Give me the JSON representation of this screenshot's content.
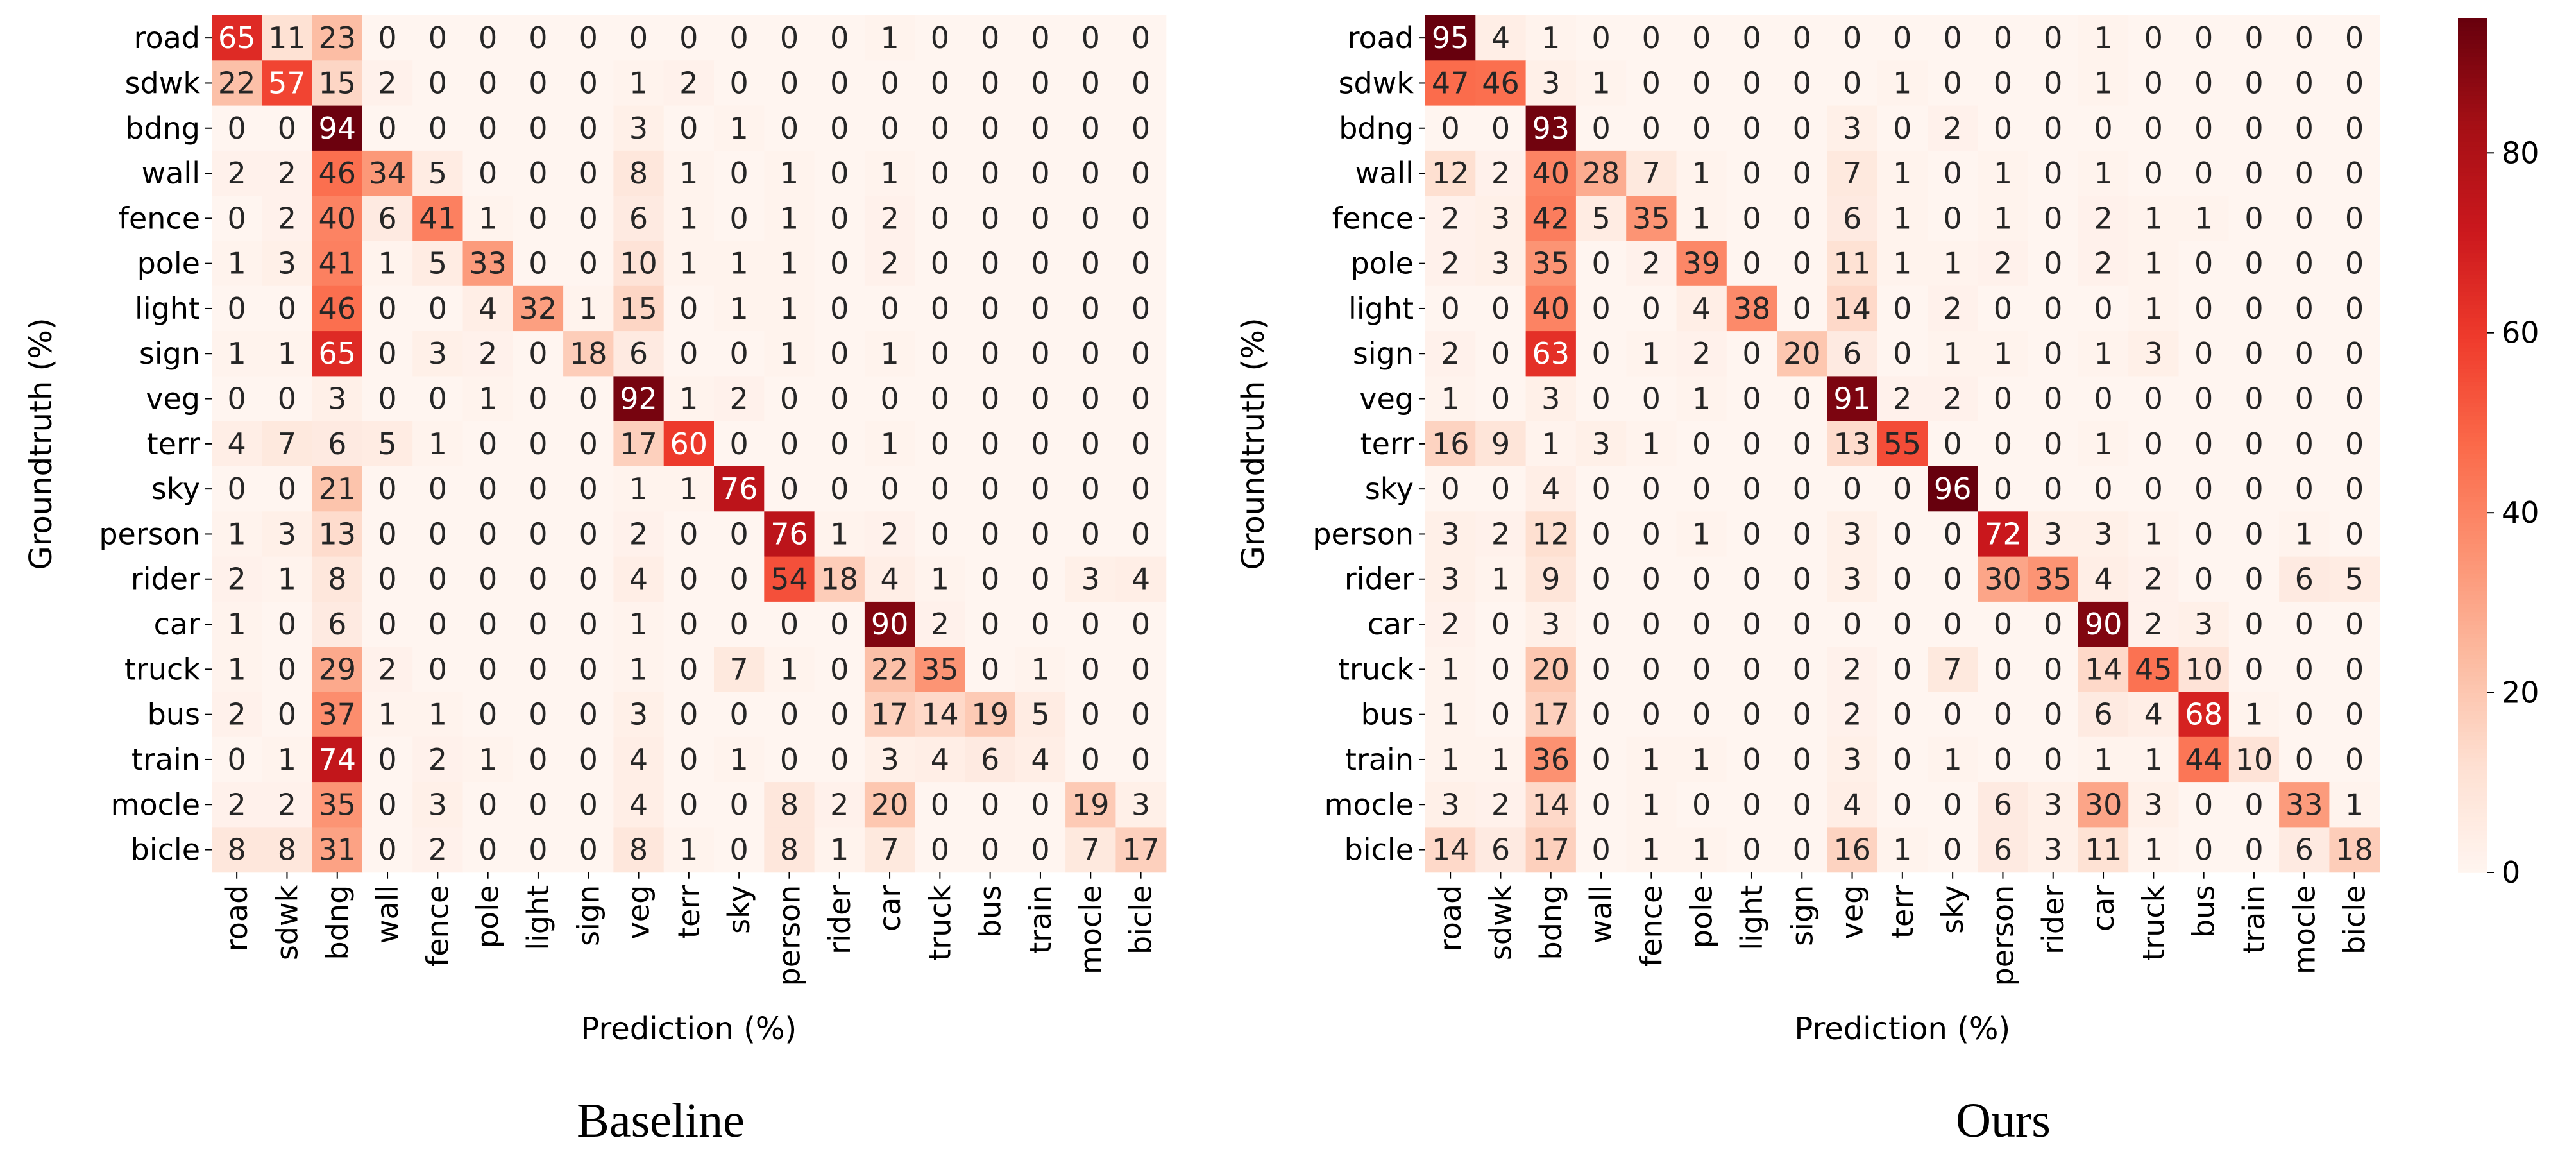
{
  "chart_data": [
    {
      "type": "heatmap",
      "title": "Baseline",
      "xlabel": "Prediction  (%)",
      "ylabel": "Groundtruth  (%)",
      "row_labels": [
        "road",
        "sdwk",
        "bdng",
        "wall",
        "fence",
        "pole",
        "light",
        "sign",
        "veg",
        "terr",
        "sky",
        "person",
        "rider",
        "car",
        "truck",
        "bus",
        "train",
        "mocle",
        "bicle"
      ],
      "col_labels": [
        "road",
        "sdwk",
        "bdng",
        "wall",
        "fence",
        "pole",
        "light",
        "sign",
        "veg",
        "terr",
        "sky",
        "person",
        "rider",
        "car",
        "truck",
        "bus",
        "train",
        "mocle",
        "bicle"
      ],
      "values": [
        [
          65,
          11,
          23,
          0,
          0,
          0,
          0,
          0,
          0,
          0,
          0,
          0,
          0,
          1,
          0,
          0,
          0,
          0,
          0
        ],
        [
          22,
          57,
          15,
          2,
          0,
          0,
          0,
          0,
          1,
          2,
          0,
          0,
          0,
          0,
          0,
          0,
          0,
          0,
          0
        ],
        [
          0,
          0,
          94,
          0,
          0,
          0,
          0,
          0,
          3,
          0,
          1,
          0,
          0,
          0,
          0,
          0,
          0,
          0,
          0
        ],
        [
          2,
          2,
          46,
          34,
          5,
          0,
          0,
          0,
          8,
          1,
          0,
          1,
          0,
          1,
          0,
          0,
          0,
          0,
          0
        ],
        [
          0,
          2,
          40,
          6,
          41,
          1,
          0,
          0,
          6,
          1,
          0,
          1,
          0,
          2,
          0,
          0,
          0,
          0,
          0
        ],
        [
          1,
          3,
          41,
          1,
          5,
          33,
          0,
          0,
          10,
          1,
          1,
          1,
          0,
          2,
          0,
          0,
          0,
          0,
          0
        ],
        [
          0,
          0,
          46,
          0,
          0,
          4,
          32,
          1,
          15,
          0,
          1,
          1,
          0,
          0,
          0,
          0,
          0,
          0,
          0
        ],
        [
          1,
          1,
          65,
          0,
          3,
          2,
          0,
          18,
          6,
          0,
          0,
          1,
          0,
          1,
          0,
          0,
          0,
          0,
          0
        ],
        [
          0,
          0,
          3,
          0,
          0,
          1,
          0,
          0,
          92,
          1,
          2,
          0,
          0,
          0,
          0,
          0,
          0,
          0,
          0
        ],
        [
          4,
          7,
          6,
          5,
          1,
          0,
          0,
          0,
          17,
          60,
          0,
          0,
          0,
          1,
          0,
          0,
          0,
          0,
          0
        ],
        [
          0,
          0,
          21,
          0,
          0,
          0,
          0,
          0,
          1,
          1,
          76,
          0,
          0,
          0,
          0,
          0,
          0,
          0,
          0
        ],
        [
          1,
          3,
          13,
          0,
          0,
          0,
          0,
          0,
          2,
          0,
          0,
          76,
          1,
          2,
          0,
          0,
          0,
          0,
          0
        ],
        [
          2,
          1,
          8,
          0,
          0,
          0,
          0,
          0,
          4,
          0,
          0,
          54,
          18,
          4,
          1,
          0,
          0,
          3,
          4
        ],
        [
          1,
          0,
          6,
          0,
          0,
          0,
          0,
          0,
          1,
          0,
          0,
          0,
          0,
          90,
          2,
          0,
          0,
          0,
          0
        ],
        [
          1,
          0,
          29,
          2,
          0,
          0,
          0,
          0,
          1,
          0,
          7,
          1,
          0,
          22,
          35,
          0,
          1,
          0,
          0
        ],
        [
          2,
          0,
          37,
          1,
          1,
          0,
          0,
          0,
          3,
          0,
          0,
          0,
          0,
          17,
          14,
          19,
          5,
          0,
          0
        ],
        [
          0,
          1,
          74,
          0,
          2,
          1,
          0,
          0,
          4,
          0,
          1,
          0,
          0,
          3,
          4,
          6,
          4,
          0,
          0
        ],
        [
          2,
          2,
          35,
          0,
          3,
          0,
          0,
          0,
          4,
          0,
          0,
          8,
          2,
          20,
          0,
          0,
          0,
          19,
          3
        ],
        [
          8,
          8,
          31,
          0,
          2,
          0,
          0,
          0,
          8,
          1,
          0,
          8,
          1,
          7,
          0,
          0,
          0,
          7,
          17
        ]
      ]
    },
    {
      "type": "heatmap",
      "title": "Ours",
      "xlabel": "Prediction  (%)",
      "ylabel": "Groundtruth  (%)",
      "row_labels": [
        "road",
        "sdwk",
        "bdng",
        "wall",
        "fence",
        "pole",
        "light",
        "sign",
        "veg",
        "terr",
        "sky",
        "person",
        "rider",
        "car",
        "truck",
        "bus",
        "train",
        "mocle",
        "bicle"
      ],
      "col_labels": [
        "road",
        "sdwk",
        "bdng",
        "wall",
        "fence",
        "pole",
        "light",
        "sign",
        "veg",
        "terr",
        "sky",
        "person",
        "rider",
        "car",
        "truck",
        "bus",
        "train",
        "mocle",
        "bicle"
      ],
      "values": [
        [
          95,
          4,
          1,
          0,
          0,
          0,
          0,
          0,
          0,
          0,
          0,
          0,
          0,
          1,
          0,
          0,
          0,
          0,
          0
        ],
        [
          47,
          46,
          3,
          1,
          0,
          0,
          0,
          0,
          0,
          1,
          0,
          0,
          0,
          1,
          0,
          0,
          0,
          0,
          0
        ],
        [
          0,
          0,
          93,
          0,
          0,
          0,
          0,
          0,
          3,
          0,
          2,
          0,
          0,
          0,
          0,
          0,
          0,
          0,
          0
        ],
        [
          12,
          2,
          40,
          28,
          7,
          1,
          0,
          0,
          7,
          1,
          0,
          1,
          0,
          1,
          0,
          0,
          0,
          0,
          0
        ],
        [
          2,
          3,
          42,
          5,
          35,
          1,
          0,
          0,
          6,
          1,
          0,
          1,
          0,
          2,
          1,
          1,
          0,
          0,
          0
        ],
        [
          2,
          3,
          35,
          0,
          2,
          39,
          0,
          0,
          11,
          1,
          1,
          2,
          0,
          2,
          1,
          0,
          0,
          0,
          0
        ],
        [
          0,
          0,
          40,
          0,
          0,
          4,
          38,
          0,
          14,
          0,
          2,
          0,
          0,
          0,
          1,
          0,
          0,
          0,
          0
        ],
        [
          2,
          0,
          63,
          0,
          1,
          2,
          0,
          20,
          6,
          0,
          1,
          1,
          0,
          1,
          3,
          0,
          0,
          0,
          0
        ],
        [
          1,
          0,
          3,
          0,
          0,
          1,
          0,
          0,
          91,
          2,
          2,
          0,
          0,
          0,
          0,
          0,
          0,
          0,
          0
        ],
        [
          16,
          9,
          1,
          3,
          1,
          0,
          0,
          0,
          13,
          55,
          0,
          0,
          0,
          1,
          0,
          0,
          0,
          0,
          0
        ],
        [
          0,
          0,
          4,
          0,
          0,
          0,
          0,
          0,
          0,
          0,
          96,
          0,
          0,
          0,
          0,
          0,
          0,
          0,
          0
        ],
        [
          3,
          2,
          12,
          0,
          0,
          1,
          0,
          0,
          3,
          0,
          0,
          72,
          3,
          3,
          1,
          0,
          0,
          1,
          0
        ],
        [
          3,
          1,
          9,
          0,
          0,
          0,
          0,
          0,
          3,
          0,
          0,
          30,
          35,
          4,
          2,
          0,
          0,
          6,
          5
        ],
        [
          2,
          0,
          3,
          0,
          0,
          0,
          0,
          0,
          0,
          0,
          0,
          0,
          0,
          90,
          2,
          3,
          0,
          0,
          0
        ],
        [
          1,
          0,
          20,
          0,
          0,
          0,
          0,
          0,
          2,
          0,
          7,
          0,
          0,
          14,
          45,
          10,
          0,
          0,
          0
        ],
        [
          1,
          0,
          17,
          0,
          0,
          0,
          0,
          0,
          2,
          0,
          0,
          0,
          0,
          6,
          4,
          68,
          1,
          0,
          0
        ],
        [
          1,
          1,
          36,
          0,
          1,
          1,
          0,
          0,
          3,
          0,
          1,
          0,
          0,
          1,
          1,
          44,
          10,
          0,
          0
        ],
        [
          3,
          2,
          14,
          0,
          1,
          0,
          0,
          0,
          4,
          0,
          0,
          6,
          3,
          30,
          3,
          0,
          0,
          33,
          1
        ],
        [
          14,
          6,
          17,
          0,
          1,
          1,
          0,
          0,
          16,
          1,
          0,
          6,
          3,
          11,
          1,
          0,
          0,
          6,
          18
        ]
      ]
    }
  ],
  "colorbar": {
    "vmin": 0,
    "vmax": 95,
    "ticks": [
      0,
      20,
      40,
      60,
      80
    ],
    "color_low": "#fff5f0",
    "color_high": "#67000d"
  }
}
